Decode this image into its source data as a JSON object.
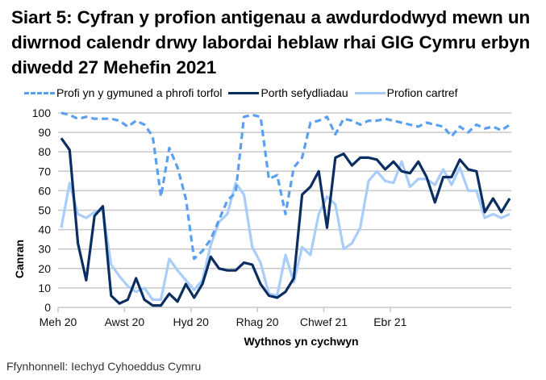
{
  "title": "Siart 5: Cyfran y profion antigenau a awdurdodwyd mewn un diwrnod calendr drwy labordai heblaw rhai GIG Cymru erbyn diwedd 27 Mehefin 2021",
  "legend": {
    "items": [
      {
        "label": "Profi yn y gymuned a phrofi torfol",
        "style": "dashed",
        "color": "#5aa0f0"
      },
      {
        "label": "Porth sefydliadau",
        "style": "solid",
        "color": "#0b2e62"
      },
      {
        "label": "Profion cartref",
        "style": "solid",
        "color": "#a9cdfb"
      }
    ]
  },
  "axes": {
    "ylabel": "Canran",
    "xlabel": "Wythnos yn cychwyn",
    "yticks": [
      "0",
      "10",
      "20",
      "30",
      "40",
      "50",
      "60",
      "70",
      "80",
      "90",
      "100"
    ],
    "xticks": [
      {
        "label": "Meh 20",
        "index": 0
      },
      {
        "label": "Awst 20",
        "index": 8
      },
      {
        "label": "Hyd 20",
        "index": 16
      },
      {
        "label": "Rhag 20",
        "index": 24
      },
      {
        "label": "Chwef 21",
        "index": 32
      },
      {
        "label": "Ebr 21",
        "index": 40
      }
    ]
  },
  "source": "Ffynhonnell: Iechyd Cyhoeddus Cymru",
  "chart_data": {
    "type": "line",
    "title": "Siart 5: Cyfran y profion antigenau a awdurdodwyd mewn un diwrnod calendr drwy labordai heblaw rhai GIG Cymru erbyn diwedd 27 Mehefin 2021",
    "xlabel": "Wythnos yn cychwyn",
    "ylabel": "Canran",
    "ylim": [
      0,
      100
    ],
    "grid": true,
    "legend_position": "top",
    "x_tick_labels": [
      "Meh 20",
      "Awst 20",
      "Hyd 20",
      "Rhag 20",
      "Chwef 21",
      "Ebr 21"
    ],
    "n_points": 55,
    "series": [
      {
        "name": "Profi yn y gymuned a phrofi torfol",
        "style": "dashed",
        "color": "#5aa0f0",
        "values": [
          100,
          99,
          97,
          98,
          97,
          97,
          97,
          96,
          93,
          96,
          94,
          88,
          57,
          82,
          72,
          56,
          25,
          29,
          35,
          45,
          55,
          59,
          98,
          99,
          98,
          66,
          68,
          48,
          72,
          77,
          95,
          96,
          98,
          89,
          97,
          96,
          94,
          96,
          96,
          97,
          96,
          95,
          94,
          93,
          95,
          94,
          93,
          88,
          93,
          90,
          94,
          92,
          93,
          91,
          94
        ]
      },
      {
        "name": "Porth sefydliadau",
        "style": "solid",
        "color": "#0b2e62",
        "values": [
          87,
          81,
          33,
          14,
          47,
          52,
          6,
          2,
          4,
          15,
          4,
          1,
          1,
          7,
          3,
          12,
          5,
          12,
          26,
          20,
          19,
          19,
          23,
          22,
          12,
          6,
          5,
          8,
          15,
          58,
          62,
          70,
          41,
          77,
          79,
          73,
          77,
          77,
          76,
          71,
          75,
          70,
          69,
          75,
          67,
          54,
          67,
          67,
          76,
          71,
          70,
          49,
          56,
          49,
          56
        ]
      },
      {
        "name": "Profion cartref",
        "style": "solid",
        "color": "#a9cdfb",
        "values": [
          41,
          64,
          48,
          46,
          49,
          50,
          22,
          16,
          11,
          8,
          10,
          4,
          4,
          25,
          19,
          14,
          9,
          14,
          32,
          44,
          48,
          64,
          58,
          31,
          23,
          7,
          6,
          27,
          13,
          31,
          27,
          48,
          57,
          53,
          30,
          33,
          41,
          65,
          70,
          65,
          64,
          75,
          62,
          66,
          66,
          63,
          71,
          63,
          72,
          60,
          60,
          46,
          48,
          46,
          48
        ]
      }
    ]
  }
}
